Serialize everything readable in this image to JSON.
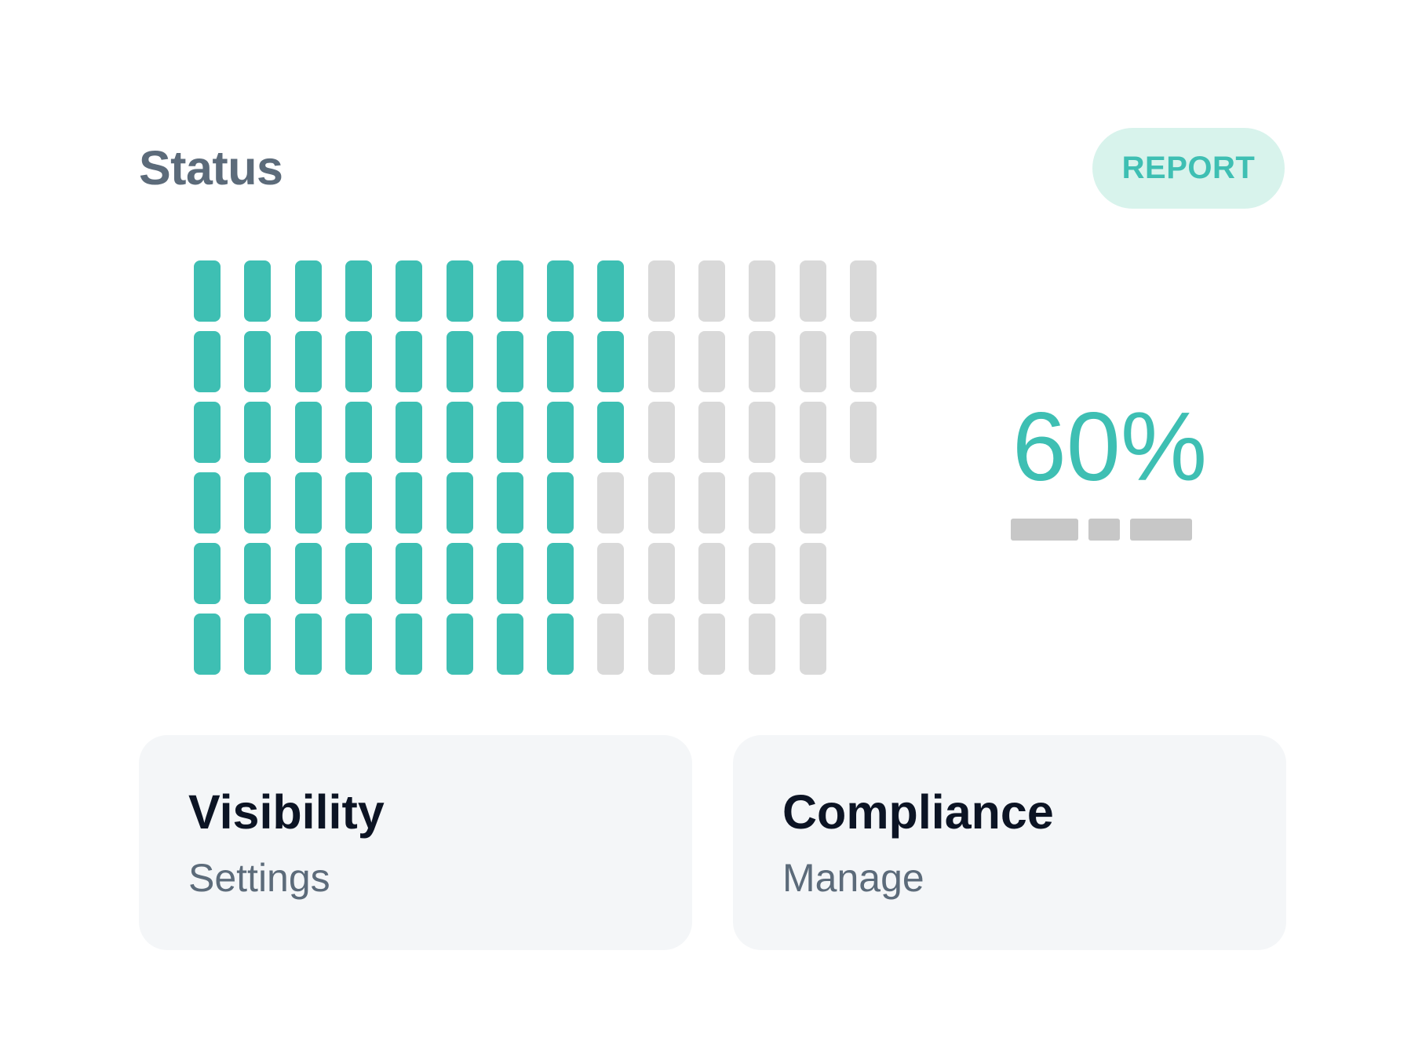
{
  "header": {
    "title": "Status",
    "report_label": "REPORT"
  },
  "progress": {
    "percent_label": "60%",
    "value": 0.6
  },
  "waffle": {
    "rows": [
      {
        "total": 14,
        "filled": 9
      },
      {
        "total": 14,
        "filled": 9
      },
      {
        "total": 14,
        "filled": 9
      },
      {
        "total": 13,
        "filled": 8
      },
      {
        "total": 13,
        "filled": 8
      },
      {
        "total": 13,
        "filled": 8
      }
    ],
    "filled_color": "#3ebfb3",
    "empty_color": "#d9d9d9"
  },
  "cards": [
    {
      "title": "Visibility",
      "subtitle": "Settings"
    },
    {
      "title": "Compliance",
      "subtitle": "Manage"
    }
  ],
  "colors": {
    "accent": "#3ebfb3",
    "accent_bg": "#d8f3ec",
    "card_bg": "#f4f6f8",
    "muted_text": "#5c6b7a",
    "dark_text": "#0c1424"
  }
}
